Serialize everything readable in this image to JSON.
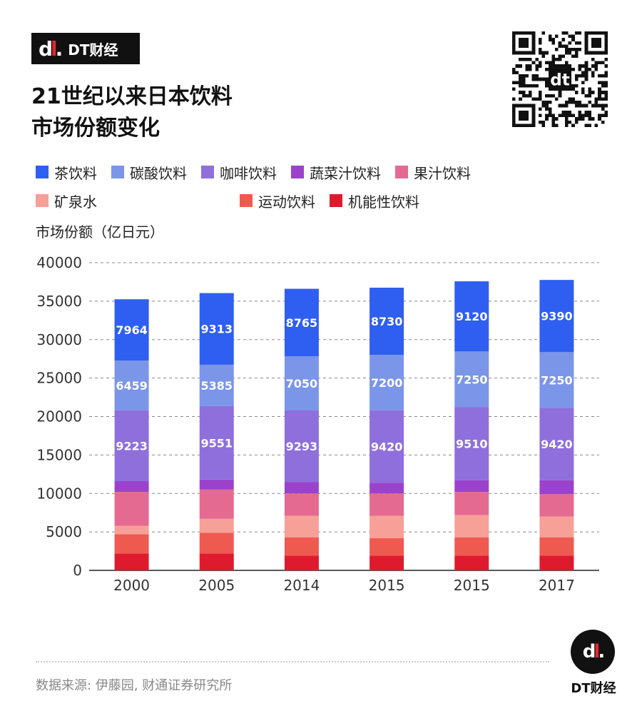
{
  "brand": {
    "logo_text": "DT财经",
    "mark": "dt"
  },
  "title_line1": "21世纪以来日本饮料",
  "title_line2": "市场份额变化",
  "y_axis_label": "市场份额（亿日元）",
  "source": "数据来源: 伊藤园, 财通证券研究所",
  "chart_data": {
    "type": "bar",
    "stacked": true,
    "title": "21世纪以来日本饮料市场份额变化",
    "ylabel": "市场份额（亿日元）",
    "xlabel": "",
    "ylim": [
      0,
      40000
    ],
    "yticks": [
      0,
      5000,
      10000,
      15000,
      20000,
      25000,
      30000,
      35000,
      40000
    ],
    "grid": true,
    "legend_position": "top",
    "categories": [
      "2000",
      "2005",
      "2014",
      "2015",
      "2015",
      "2017"
    ],
    "series": [
      {
        "name": "机能性饮料",
        "color": "#e01a2e",
        "values": [
          2200,
          2200,
          1900,
          1900,
          1900,
          1900
        ],
        "labels_shown": false
      },
      {
        "name": "运动饮料",
        "color": "#ee5a50",
        "values": [
          2500,
          2700,
          2400,
          2300,
          2400,
          2400
        ],
        "labels_shown": false
      },
      {
        "name": "矿泉水",
        "color": "#f6a098",
        "values": [
          1100,
          1800,
          2800,
          2900,
          2900,
          2700
        ],
        "labels_shown": false
      },
      {
        "name": "果汁饮料",
        "color": "#e56a92",
        "values": [
          4400,
          3800,
          2900,
          2900,
          3000,
          2900
        ],
        "labels_shown": false
      },
      {
        "name": "蔬菜汁饮料",
        "color": "#9b42cc",
        "values": [
          1400,
          1300,
          1500,
          1400,
          1500,
          1800
        ],
        "labels_shown": false
      },
      {
        "name": "咖啡饮料",
        "color": "#8f6fdc",
        "values": [
          9223,
          9551,
          9293,
          9420,
          9510,
          9420
        ],
        "labels_shown": true
      },
      {
        "name": "碳酸饮料",
        "color": "#7b95e8",
        "values": [
          6459,
          5385,
          7050,
          7200,
          7250,
          7250
        ],
        "labels_shown": true
      },
      {
        "name": "茶饮料",
        "color": "#2f5ff0",
        "values": [
          7964,
          9313,
          8765,
          8730,
          9120,
          9390
        ],
        "labels_shown": true
      }
    ],
    "legend_order": [
      "茶饮料",
      "碳酸饮料",
      "咖啡饮料",
      "蔬菜汁饮料",
      "果汁饮料",
      "矿泉水",
      "运动饮料",
      "机能性饮料"
    ]
  }
}
